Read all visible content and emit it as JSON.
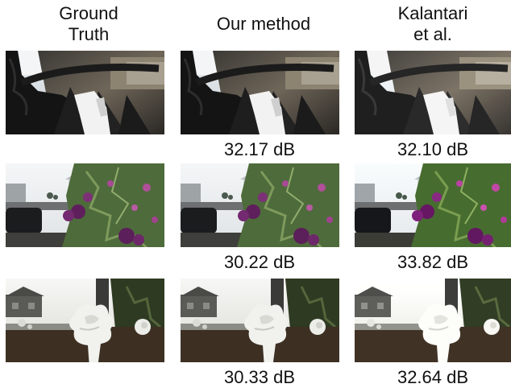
{
  "figure": {
    "columns": [
      {
        "id": "gt",
        "header": "Ground\nTruth"
      },
      {
        "id": "ours",
        "header": "Our method"
      },
      {
        "id": "kal",
        "header": "Kalantari\net al."
      }
    ],
    "rows": [
      {
        "scene": "car",
        "psnr": {
          "ours": "32.17 dB",
          "kal": "32.10 dB"
        }
      },
      {
        "scene": "purple-flower",
        "psnr": {
          "ours": "30.22 dB",
          "kal": "33.82 dB"
        }
      },
      {
        "scene": "white-flower",
        "psnr": {
          "ours": "30.33 dB",
          "kal": "32.64 dB"
        }
      }
    ]
  }
}
